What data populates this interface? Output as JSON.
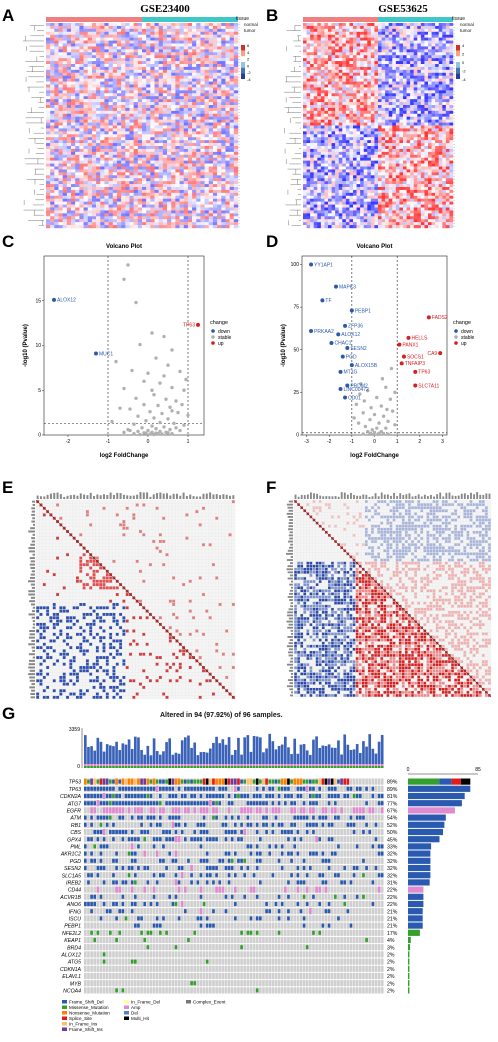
{
  "panels": {
    "A": {
      "letter": "A",
      "title": "GSE23400",
      "legend_label": "tissue",
      "legend_items": [
        "normal",
        "tumor"
      ],
      "scale_ticks": [
        "6",
        "4",
        "2",
        "0",
        "-2",
        "-4"
      ]
    },
    "B": {
      "letter": "B",
      "title": "GSE53625",
      "legend_label": "tissue",
      "legend_items": [
        "normal",
        "tumor"
      ],
      "scale_ticks": [
        "4",
        "2",
        "0",
        "-2",
        "-4"
      ]
    },
    "C": {
      "letter": "C"
    },
    "D": {
      "letter": "D"
    },
    "E": {
      "letter": "E"
    },
    "F": {
      "letter": "F"
    },
    "G": {
      "letter": "G",
      "title": "Altered in 94 (97.92%) of 96 samples.",
      "tmb_max": "3359",
      "tmb_min": "0",
      "side_max": "85",
      "side_min": "0"
    }
  },
  "chart_data": [
    {
      "id": "volcano-C",
      "type": "scatter",
      "title": "Volcano Plot",
      "xlabel": "log2 FoldChange",
      "ylabel": "-log10 (Pvalue)",
      "xlim": [
        -2.6,
        1.4
      ],
      "ylim": [
        0,
        20
      ],
      "xticks": [
        -2,
        -1,
        0,
        1
      ],
      "yticks": [
        0,
        5,
        10,
        15
      ],
      "legend_title": "change",
      "legend": [
        "down",
        "stable",
        "up"
      ],
      "colors": {
        "down": "#2b5aa8",
        "stable": "#b0b0b0",
        "up": "#d42020"
      },
      "labeled_points": [
        {
          "label": "ALOX12",
          "x": -2.35,
          "y": 15.1,
          "change": "down"
        },
        {
          "label": "MUC1",
          "x": -1.3,
          "y": 9.1,
          "change": "down"
        },
        {
          "label": "TP63",
          "x": 1.25,
          "y": 12.3,
          "change": "up"
        }
      ],
      "stable_points": [
        [
          -0.5,
          19.0
        ],
        [
          -0.6,
          17.4
        ],
        [
          -0.3,
          14.8
        ],
        [
          0.1,
          11.4
        ],
        [
          -0.2,
          10.1
        ],
        [
          0.4,
          11.0
        ],
        [
          0.6,
          9.5
        ],
        [
          -0.8,
          8.2
        ],
        [
          0.2,
          8.6
        ],
        [
          0.5,
          7.8
        ],
        [
          -0.4,
          7.2
        ],
        [
          0.8,
          7.1
        ],
        [
          0.0,
          6.9
        ],
        [
          -0.1,
          6.0
        ],
        [
          0.3,
          5.8
        ],
        [
          0.6,
          5.3
        ],
        [
          -0.6,
          5.2
        ],
        [
          0.9,
          5.0
        ],
        [
          0.15,
          4.5
        ],
        [
          -0.3,
          4.1
        ],
        [
          0.45,
          4.0
        ],
        [
          0.7,
          3.8
        ],
        [
          -0.1,
          3.4
        ],
        [
          0.25,
          3.3
        ],
        [
          0.55,
          3.1
        ],
        [
          -0.45,
          2.9
        ],
        [
          0.05,
          2.6
        ],
        [
          0.35,
          2.4
        ],
        [
          0.75,
          2.5
        ],
        [
          -0.25,
          2.1
        ],
        [
          0.15,
          1.9
        ],
        [
          0.5,
          1.8
        ],
        [
          -0.05,
          1.6
        ],
        [
          0.3,
          1.4
        ],
        [
          0.65,
          1.3
        ],
        [
          -0.35,
          1.2
        ],
        [
          0.1,
          1.0
        ],
        [
          0.4,
          0.9
        ],
        [
          -0.15,
          0.8
        ],
        [
          0.2,
          0.7
        ],
        [
          0.55,
          0.6
        ],
        [
          -0.5,
          0.6
        ],
        [
          0.0,
          0.5
        ],
        [
          0.3,
          0.4
        ],
        [
          -0.25,
          0.4
        ],
        [
          0.1,
          0.3
        ],
        [
          0.45,
          0.3
        ],
        [
          -0.1,
          0.25
        ],
        [
          0.2,
          0.2
        ],
        [
          0.6,
          0.15
        ],
        [
          -0.35,
          0.15
        ],
        [
          0.05,
          0.1
        ],
        [
          0.35,
          0.1
        ],
        [
          -0.2,
          0.05
        ],
        [
          0.15,
          0.05
        ],
        [
          0.9,
          1.1
        ],
        [
          1.0,
          2.2
        ],
        [
          -0.9,
          1.5
        ],
        [
          0.85,
          3.4
        ],
        [
          0.95,
          6.2
        ],
        [
          -0.7,
          3.0
        ],
        [
          0.7,
          0.8
        ],
        [
          -0.6,
          0.3
        ],
        [
          0.25,
          0.15
        ],
        [
          -0.05,
          0.2
        ],
        [
          0.5,
          0.25
        ],
        [
          0.8,
          0.5
        ],
        [
          -0.45,
          0.5
        ],
        [
          0.6,
          2.7
        ],
        [
          0.4,
          6.6
        ],
        [
          0.1,
          5.0
        ]
      ],
      "threshold_y": 1.3,
      "threshold_x": [
        -1,
        1
      ]
    },
    {
      "id": "volcano-D",
      "type": "scatter",
      "title": "Volcano Plot",
      "xlabel": "log2 FoldChange",
      "ylabel": "-log10 (Pvalue)",
      "xlim": [
        -3.2,
        3.2
      ],
      "ylim": [
        0,
        105
      ],
      "xticks": [
        -3,
        -2,
        -1,
        0,
        1,
        2,
        3
      ],
      "yticks": [
        0,
        25,
        50,
        75,
        100
      ],
      "legend_title": "change",
      "legend": [
        "down",
        "stable",
        "up"
      ],
      "colors": {
        "down": "#2b5aa8",
        "stable": "#b0b0b0",
        "up": "#d42020"
      },
      "labeled_points": [
        {
          "label": "YY1AP1",
          "x": -2.8,
          "y": 100,
          "change": "down"
        },
        {
          "label": "MAPK3",
          "x": -1.7,
          "y": 87,
          "change": "down"
        },
        {
          "label": "TF",
          "x": -2.3,
          "y": 79,
          "change": "down"
        },
        {
          "label": "PEBP1",
          "x": -1.0,
          "y": 73,
          "change": "down"
        },
        {
          "label": "PRKAA2",
          "x": -2.8,
          "y": 61,
          "change": "down"
        },
        {
          "label": "ZFP36",
          "x": -1.3,
          "y": 64,
          "change": "down"
        },
        {
          "label": "ALOX12",
          "x": -1.6,
          "y": 59,
          "change": "down"
        },
        {
          "label": "CHAC1",
          "x": -1.9,
          "y": 54,
          "change": "down"
        },
        {
          "label": "SESN2",
          "x": -1.2,
          "y": 51,
          "change": "down"
        },
        {
          "label": "PGD",
          "x": -1.4,
          "y": 46,
          "change": "down"
        },
        {
          "label": "ALOX15B",
          "x": -1.0,
          "y": 41,
          "change": "down"
        },
        {
          "label": "MT1G",
          "x": -1.5,
          "y": 37,
          "change": "down"
        },
        {
          "label": "PRDM2",
          "x": -1.2,
          "y": 29,
          "change": "down"
        },
        {
          "label": "LINC00472",
          "x": -1.5,
          "y": 27,
          "change": "down"
        },
        {
          "label": "CD01",
          "x": -1.3,
          "y": 22,
          "change": "down"
        },
        {
          "label": "FADS2",
          "x": 2.4,
          "y": 69,
          "change": "up"
        },
        {
          "label": "HELLS",
          "x": 1.5,
          "y": 57,
          "change": "up"
        },
        {
          "label": "PANX1",
          "x": 1.1,
          "y": 53,
          "change": "up"
        },
        {
          "label": "CA9",
          "x": 2.9,
          "y": 48,
          "change": "up"
        },
        {
          "label": "SOCS1",
          "x": 1.3,
          "y": 46,
          "change": "up"
        },
        {
          "label": "TNFAIP3",
          "x": 1.2,
          "y": 42,
          "change": "up"
        },
        {
          "label": "TP63",
          "x": 1.8,
          "y": 37,
          "change": "up"
        },
        {
          "label": "SLC7A11",
          "x": 1.8,
          "y": 29,
          "change": "up"
        }
      ],
      "stable_points": [
        [
          -0.6,
          30
        ],
        [
          -0.3,
          26
        ],
        [
          0.1,
          22
        ],
        [
          0.5,
          28
        ],
        [
          -0.8,
          18
        ],
        [
          0.3,
          17
        ],
        [
          0.7,
          21
        ],
        [
          -0.5,
          13
        ],
        [
          0.0,
          12
        ],
        [
          0.4,
          11
        ],
        [
          0.8,
          14
        ],
        [
          -0.2,
          9
        ],
        [
          0.2,
          7
        ],
        [
          0.6,
          8
        ],
        [
          -0.7,
          7
        ],
        [
          -0.4,
          5
        ],
        [
          0.1,
          4
        ],
        [
          0.5,
          4
        ],
        [
          -0.1,
          3
        ],
        [
          0.3,
          2
        ],
        [
          -0.3,
          2
        ],
        [
          0.0,
          1.5
        ],
        [
          0.2,
          1
        ],
        [
          -0.2,
          1
        ],
        [
          0.4,
          0.8
        ],
        [
          0.6,
          0.5
        ],
        [
          -0.5,
          0.6
        ],
        [
          0.15,
          0.4
        ],
        [
          -0.05,
          0.3
        ],
        [
          0.9,
          6
        ],
        [
          -0.9,
          10
        ],
        [
          0.35,
          33
        ],
        [
          0.75,
          39
        ],
        [
          -0.65,
          24
        ],
        [
          0.9,
          25
        ],
        [
          -0.15,
          16
        ],
        [
          0.55,
          15
        ],
        [
          -0.45,
          20
        ]
      ],
      "threshold_y": 1.3,
      "threshold_x": [
        -1,
        1
      ]
    }
  ],
  "oncoprint": {
    "genes": [
      "TP53",
      "TP63",
      "CDKN2A",
      "ATG7",
      "EGFR",
      "ATM",
      "RB1",
      "CBS",
      "GPX4",
      "PML",
      "AKR1C2",
      "PGD",
      "SESN2",
      "SLC1A5",
      "IREB2",
      "CD44",
      "ACVR1B",
      "ANO6",
      "IFNG",
      "ISCU",
      "PEBP1",
      "NFE2L2",
      "KEAP1",
      "BRD4",
      "ALOX12",
      "ATG5",
      "CDKN1A",
      "ELAVL1",
      "MYB",
      "NCOA4"
    ],
    "percents": [
      "89%",
      "89%",
      "81%",
      "77%",
      "67%",
      "54%",
      "52%",
      "50%",
      "45%",
      "33%",
      "32%",
      "32%",
      "32%",
      "32%",
      "31%",
      "22%",
      "22%",
      "22%",
      "21%",
      "21%",
      "21%",
      "17%",
      "4%",
      "3%",
      "2%",
      "2%",
      "2%",
      "2%",
      "2%",
      "2%"
    ],
    "legend": [
      "Frame_Shift_Del",
      "Missense_Mutation",
      "Nonsense_Mutation",
      "Splice_Site",
      "In_Frame_Ins",
      "Frame_Shift_Ins",
      "In_Frame_Del",
      "Amp",
      "Del",
      "Multi_Hit",
      "Complex_Event"
    ],
    "legend_colors": [
      "#2a5ab0",
      "#33a02c",
      "#ff7f00",
      "#e31a1c",
      "#fdbf6f",
      "#6a3d9a",
      "#ffff99",
      "#e08ad0",
      "#5080d0",
      "#000000",
      "#777777"
    ]
  }
}
